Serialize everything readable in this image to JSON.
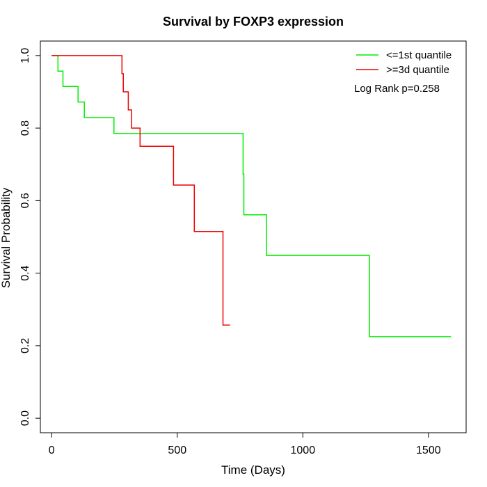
{
  "chart_data": {
    "type": "line",
    "title": "Survival by FOXP3 expression",
    "xlabel": "Time (Days)",
    "ylabel": "Survival Probability",
    "xlim": [
      -45,
      1650
    ],
    "ylim": [
      -0.04,
      1.04
    ],
    "xticks": [
      0,
      500,
      1000,
      1500
    ],
    "yticks": [
      0.0,
      0.2,
      0.4,
      0.6,
      0.8,
      1.0
    ],
    "xtick_labels": [
      "0",
      "500",
      "1000",
      "1500"
    ],
    "ytick_labels": [
      "0.0",
      "0.2",
      "0.4",
      "0.6",
      "0.8",
      "1.0"
    ],
    "grid": false,
    "legend_position": "top-right",
    "annotation": "Log Rank p=0.258",
    "series": [
      {
        "name": "<=1st quantile",
        "color": "#00ee00",
        "step": [
          [
            0,
            1.0
          ],
          [
            25,
            1.0
          ],
          [
            25,
            0.957
          ],
          [
            45,
            0.957
          ],
          [
            45,
            0.915
          ],
          [
            105,
            0.915
          ],
          [
            105,
            0.872
          ],
          [
            130,
            0.872
          ],
          [
            130,
            0.829
          ],
          [
            248,
            0.829
          ],
          [
            248,
            0.785
          ],
          [
            762,
            0.785
          ],
          [
            762,
            0.673
          ],
          [
            765,
            0.673
          ],
          [
            765,
            0.561
          ],
          [
            855,
            0.561
          ],
          [
            855,
            0.449
          ],
          [
            1265,
            0.449
          ],
          [
            1265,
            0.225
          ],
          [
            1590,
            0.225
          ]
        ]
      },
      {
        "name": ">=3d quantile",
        "color": "#ee0000",
        "step": [
          [
            0,
            1.0
          ],
          [
            280,
            1.0
          ],
          [
            280,
            0.95
          ],
          [
            285,
            0.95
          ],
          [
            285,
            0.9
          ],
          [
            305,
            0.9
          ],
          [
            305,
            0.85
          ],
          [
            318,
            0.85
          ],
          [
            318,
            0.8
          ],
          [
            352,
            0.8
          ],
          [
            352,
            0.75
          ],
          [
            485,
            0.75
          ],
          [
            485,
            0.643
          ],
          [
            568,
            0.643
          ],
          [
            568,
            0.515
          ],
          [
            682,
            0.515
          ],
          [
            682,
            0.257
          ],
          [
            710,
            0.257
          ]
        ]
      }
    ]
  }
}
